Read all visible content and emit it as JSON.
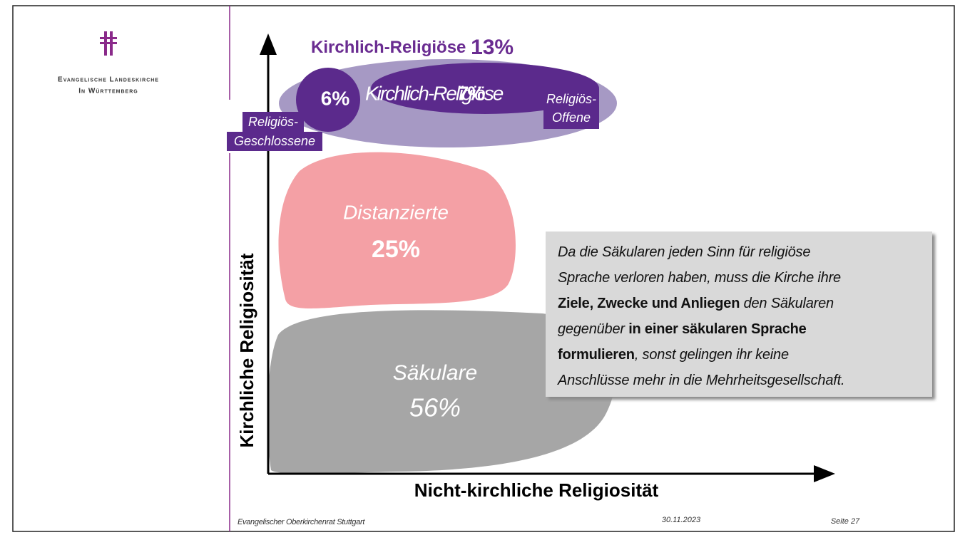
{
  "logo": {
    "line1": "Evangelische Landeskirche",
    "line2": "In Württemberg"
  },
  "diagram": {
    "y_axis_label": "Kirchliche Religiosität",
    "x_axis_label": "Nicht-kirchliche Religiosität",
    "top_group": {
      "name": "Kirchlich-Religiöse",
      "share": "13%"
    },
    "closed": {
      "share": "6%",
      "label_line1": "Religiös-",
      "label_line2": "Geschlossene"
    },
    "open": {
      "name": "Kirchlich-Religiöse",
      "share": "7%",
      "label_line1": "Religiös-",
      "label_line2": "Offene"
    },
    "distanced": {
      "name": "Distanzierte",
      "share": "25%"
    },
    "secular": {
      "name": "Säkulare",
      "share": "56%"
    }
  },
  "textbox": {
    "lines": [
      [
        {
          "text": "Da die Säkularen jeden Sinn für religiöse",
          "style": "italic"
        }
      ],
      [
        {
          "text": "Sprache verloren haben, muss die Kirche ihre",
          "style": "italic"
        }
      ],
      [
        {
          "text": "Ziele, Zwecke und Anliegen",
          "style": "bold"
        },
        {
          "text": " den Säkularen",
          "style": "italic"
        }
      ],
      [
        {
          "text": "gegenüber ",
          "style": "italic"
        },
        {
          "text": "in einer säkularen Sprache",
          "style": "bold"
        }
      ],
      [
        {
          "text": "formulieren",
          "style": "bold"
        },
        {
          "text": ", sonst gelingen ihr keine",
          "style": "italic"
        }
      ],
      [
        {
          "text": "Anschlüsse mehr in die Mehrheitsgesellschaft.",
          "style": "italic"
        }
      ]
    ]
  },
  "footer": {
    "left": "Evangelischer Oberkirchenrat Stuttgart",
    "date": "30.11.2023",
    "page": "Seite 27"
  }
}
